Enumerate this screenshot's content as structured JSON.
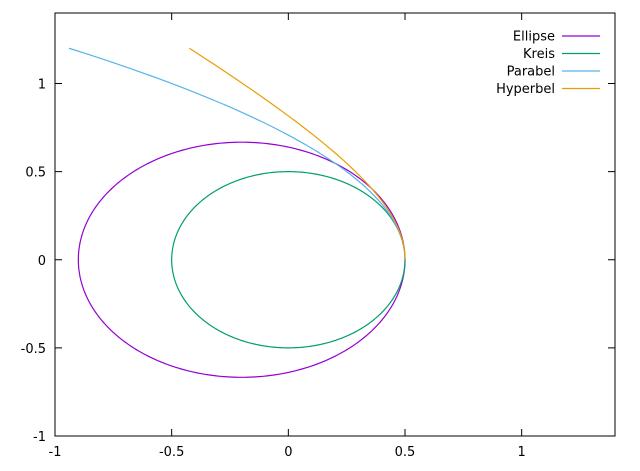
{
  "chart_data": {
    "type": "line",
    "title": "",
    "xlabel": "",
    "ylabel": "",
    "xlim": [
      -1,
      1.4
    ],
    "ylim": [
      -1,
      1.4
    ],
    "grid": false,
    "legend_position": "top-right",
    "x_ticks": [
      {
        "value": -1,
        "label": "-1"
      },
      {
        "value": -0.5,
        "label": "-0.5"
      },
      {
        "value": 0,
        "label": "0"
      },
      {
        "value": 0.5,
        "label": "0.5"
      },
      {
        "value": 1,
        "label": "1"
      }
    ],
    "y_ticks": [
      {
        "value": -1,
        "label": "-1"
      },
      {
        "value": -0.5,
        "label": "-0.5"
      },
      {
        "value": 0,
        "label": "0"
      },
      {
        "value": 0.5,
        "label": "0.5"
      },
      {
        "value": 1,
        "label": "1"
      }
    ],
    "series": [
      {
        "name": "Ellipse",
        "color": "#9400d3",
        "kind": "ellipse",
        "cx": -0.2,
        "cy": 0,
        "rx": 0.7,
        "ry": 0.667
      },
      {
        "name": "Kreis",
        "color": "#009e73",
        "kind": "ellipse",
        "cx": 0,
        "cy": 0,
        "rx": 0.5,
        "ry": 0.5
      },
      {
        "name": "Parabel",
        "color": "#56b4e9",
        "kind": "parabola",
        "vertex": [
          0.5,
          0
        ],
        "p": 0.5,
        "y_max": 1.2
      },
      {
        "name": "Hyperbel",
        "color": "#e69f00",
        "kind": "hyperbola",
        "vertex": [
          0.5,
          0
        ],
        "a": 1.0,
        "b": 0.73,
        "y_max": 1.2
      }
    ]
  }
}
